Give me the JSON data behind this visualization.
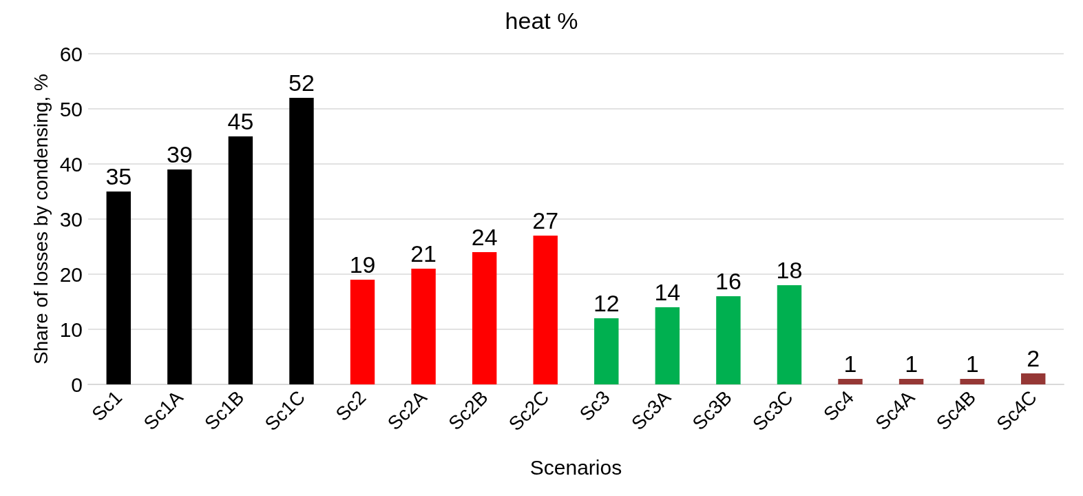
{
  "chart_data": {
    "type": "bar",
    "title": "heat %",
    "xlabel": "Scenarios",
    "ylabel": "Share of losses by condensing, %",
    "categories": [
      "Sc1",
      "Sc1A",
      "Sc1B",
      "Sc1C",
      "Sc2",
      "Sc2A",
      "Sc2B",
      "Sc2C",
      "Sc3",
      "Sc3A",
      "Sc3B",
      "Sc3C",
      "Sc4",
      "Sc4A",
      "Sc4B",
      "Sc4C"
    ],
    "values": [
      35,
      39,
      45,
      52,
      19,
      21,
      24,
      27,
      12,
      14,
      16,
      18,
      1,
      1,
      1,
      2
    ],
    "colors": [
      "#000000",
      "#000000",
      "#000000",
      "#000000",
      "#ff0000",
      "#ff0000",
      "#ff0000",
      "#ff0000",
      "#00b050",
      "#00b050",
      "#00b050",
      "#00b050",
      "#953735",
      "#953735",
      "#953735",
      "#953735"
    ],
    "ylim": [
      0,
      60
    ],
    "yticks": [
      0,
      10,
      20,
      30,
      40,
      50,
      60
    ],
    "grid": "y",
    "data_labels": true
  }
}
